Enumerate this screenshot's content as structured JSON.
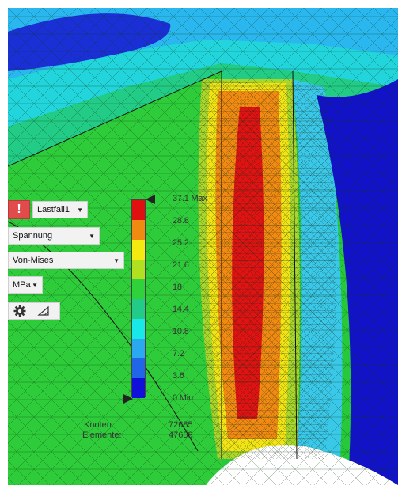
{
  "toolbar": {
    "alert_symbol": "!",
    "loadcase": "Lastfall1",
    "result_type": "Spannung",
    "component": "Von-Mises",
    "unit": "MPa",
    "settings_icon": "gear-icon",
    "probe_icon": "triangle-ruler-icon"
  },
  "legend": {
    "max_label": "37.1 Max",
    "min_label": "0 Min",
    "ticks": [
      "28.8",
      "25.2",
      "21.6",
      "18",
      "14.4",
      "10.8",
      "7.2",
      "3.6"
    ],
    "colors": [
      "#e01010",
      "#f08a10",
      "#f4ea10",
      "#b0e020",
      "#2fd23a",
      "#22cc88",
      "#18e8e8",
      "#2aa8f0",
      "#2266e8",
      "#1010d8"
    ]
  },
  "stats": {
    "nodes_label": "Knoten:",
    "nodes_value": "72685",
    "elements_label": "Elemente:",
    "elements_value": "47659"
  }
}
